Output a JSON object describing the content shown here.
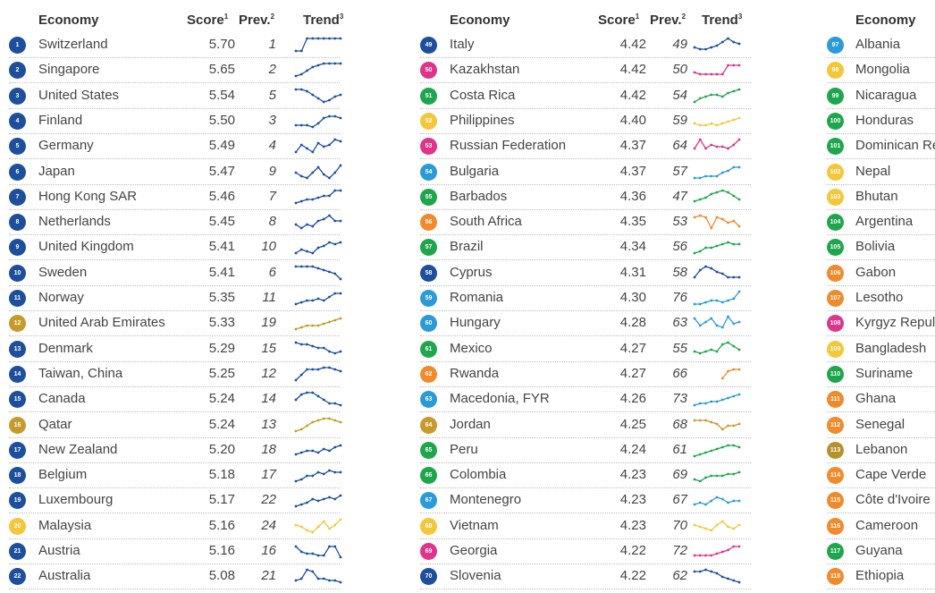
{
  "headers": {
    "economy": "Economy",
    "score": "Score",
    "score_sup": "1",
    "prev": "Prev.",
    "prev_sup": "2",
    "trend": "Trend",
    "trend_sup": "3"
  },
  "colors": {
    "navy": "#1d4f9c",
    "gold": "#c79a2b",
    "yellow": "#f4c73a",
    "sky": "#2a9ad8",
    "magenta": "#e0338a",
    "green": "#1ea64c",
    "orange": "#f08a2b",
    "olive": "#b4912a"
  },
  "columns": [
    {
      "rows": [
        {
          "rank": "1",
          "name": "Switzerland",
          "score": "5.70",
          "prev": "1",
          "color": "navy",
          "trend": [
            2,
            2,
            9,
            9,
            9,
            9,
            9,
            9,
            9
          ]
        },
        {
          "rank": "2",
          "name": "Singapore",
          "score": "5.65",
          "prev": "2",
          "color": "navy",
          "trend": [
            2,
            3,
            5,
            7,
            8,
            9,
            9,
            9,
            9
          ]
        },
        {
          "rank": "3",
          "name": "United States",
          "score": "5.54",
          "prev": "5",
          "color": "navy",
          "trend": [
            9,
            9,
            8,
            6,
            4,
            2,
            3,
            5,
            6
          ]
        },
        {
          "rank": "4",
          "name": "Finland",
          "score": "5.50",
          "prev": "3",
          "color": "navy",
          "trend": [
            3,
            3,
            3,
            2,
            4,
            7,
            8,
            8,
            7
          ]
        },
        {
          "rank": "5",
          "name": "Germany",
          "score": "5.49",
          "prev": "4",
          "color": "navy",
          "trend": [
            2,
            6,
            4,
            2,
            7,
            5,
            6,
            9,
            8
          ]
        },
        {
          "rank": "6",
          "name": "Japan",
          "score": "5.47",
          "prev": "9",
          "color": "navy",
          "trend": [
            5,
            3,
            2,
            5,
            8,
            4,
            2,
            5,
            9
          ]
        },
        {
          "rank": "7",
          "name": "Hong Kong SAR",
          "score": "5.46",
          "prev": "7",
          "color": "navy",
          "trend": [
            2,
            3,
            4,
            4,
            5,
            6,
            6,
            9,
            9
          ]
        },
        {
          "rank": "8",
          "name": "Netherlands",
          "score": "5.45",
          "prev": "8",
          "color": "navy",
          "trend": [
            4,
            2,
            4,
            3,
            6,
            7,
            9,
            6,
            6
          ]
        },
        {
          "rank": "9",
          "name": "United Kingdom",
          "score": "5.41",
          "prev": "10",
          "color": "navy",
          "trend": [
            2,
            4,
            3,
            2,
            5,
            6,
            8,
            7,
            8
          ]
        },
        {
          "rank": "10",
          "name": "Sweden",
          "score": "5.41",
          "prev": "6",
          "color": "navy",
          "trend": [
            9,
            9,
            9,
            9,
            8,
            7,
            6,
            5,
            2
          ]
        },
        {
          "rank": "11",
          "name": "Norway",
          "score": "5.35",
          "prev": "11",
          "color": "navy",
          "trend": [
            2,
            3,
            4,
            4,
            5,
            4,
            6,
            8,
            8
          ]
        },
        {
          "rank": "12",
          "name": "United Arab Emirates",
          "score": "5.33",
          "prev": "19",
          "color": "gold",
          "trend": [
            2,
            3,
            4,
            4,
            4,
            5,
            6,
            7,
            8
          ]
        },
        {
          "rank": "13",
          "name": "Denmark",
          "score": "5.29",
          "prev": "15",
          "color": "navy",
          "trend": [
            9,
            8,
            8,
            7,
            6,
            6,
            4,
            3,
            4
          ]
        },
        {
          "rank": "14",
          "name": "Taiwan, China",
          "score": "5.25",
          "prev": "12",
          "color": "navy",
          "trend": [
            2,
            5,
            8,
            8,
            8,
            9,
            9,
            8,
            7
          ]
        },
        {
          "rank": "15",
          "name": "Canada",
          "score": "5.24",
          "prev": "14",
          "color": "navy",
          "trend": [
            5,
            8,
            9,
            9,
            7,
            5,
            3,
            3,
            2
          ]
        },
        {
          "rank": "16",
          "name": "Qatar",
          "score": "5.24",
          "prev": "13",
          "color": "gold",
          "trend": [
            2,
            3,
            5,
            7,
            8,
            9,
            9,
            8,
            7
          ]
        },
        {
          "rank": "17",
          "name": "New Zealand",
          "score": "5.20",
          "prev": "18",
          "color": "navy",
          "trend": [
            3,
            4,
            5,
            5,
            4,
            6,
            5,
            7,
            8
          ]
        },
        {
          "rank": "18",
          "name": "Belgium",
          "score": "5.18",
          "prev": "17",
          "color": "navy",
          "trend": [
            2,
            3,
            5,
            5,
            7,
            6,
            8,
            7,
            7
          ]
        },
        {
          "rank": "19",
          "name": "Luxembourg",
          "score": "5.17",
          "prev": "22",
          "color": "navy",
          "trend": [
            2,
            3,
            4,
            6,
            5,
            6,
            7,
            6,
            8
          ]
        },
        {
          "rank": "20",
          "name": "Malaysia",
          "score": "5.16",
          "prev": "24",
          "color": "yellow",
          "trend": [
            6,
            5,
            3,
            2,
            5,
            8,
            4,
            6,
            9
          ]
        },
        {
          "rank": "21",
          "name": "Austria",
          "score": "5.16",
          "prev": "16",
          "color": "navy",
          "trend": [
            8,
            5,
            4,
            4,
            3,
            3,
            8,
            8,
            2
          ]
        },
        {
          "rank": "22",
          "name": "Australia",
          "score": "5.08",
          "prev": "21",
          "color": "navy",
          "trend": [
            3,
            4,
            9,
            8,
            4,
            4,
            3,
            3,
            2
          ]
        }
      ]
    },
    {
      "rows": [
        {
          "rank": "49",
          "name": "Italy",
          "score": "4.42",
          "prev": "49",
          "color": "navy",
          "trend": [
            4,
            3,
            3,
            4,
            5,
            7,
            9,
            7,
            6
          ]
        },
        {
          "rank": "50",
          "name": "Kazakhstan",
          "score": "4.42",
          "prev": "50",
          "color": "magenta",
          "trend": [
            4,
            3,
            3,
            3,
            3,
            3,
            8,
            8,
            8
          ]
        },
        {
          "rank": "51",
          "name": "Costa Rica",
          "score": "4.42",
          "prev": "54",
          "color": "green",
          "trend": [
            2,
            4,
            5,
            6,
            6,
            5,
            7,
            8,
            9
          ]
        },
        {
          "rank": "52",
          "name": "Philippines",
          "score": "4.40",
          "prev": "59",
          "color": "yellow",
          "trend": [
            4,
            3,
            3,
            4,
            3,
            4,
            5,
            6,
            7
          ]
        },
        {
          "rank": "53",
          "name": "Russian Federation",
          "score": "4.37",
          "prev": "64",
          "color": "magenta",
          "trend": [
            4,
            9,
            4,
            6,
            5,
            5,
            4,
            6,
            9
          ]
        },
        {
          "rank": "54",
          "name": "Bulgaria",
          "score": "4.37",
          "prev": "57",
          "color": "sky",
          "trend": [
            2,
            2,
            3,
            3,
            3,
            5,
            6,
            8,
            8
          ]
        },
        {
          "rank": "55",
          "name": "Barbados",
          "score": "4.36",
          "prev": "47",
          "color": "green",
          "trend": [
            3,
            4,
            5,
            7,
            8,
            9,
            8,
            6,
            4
          ]
        },
        {
          "rank": "56",
          "name": "South Africa",
          "score": "4.35",
          "prev": "53",
          "color": "orange",
          "trend": [
            8,
            9,
            8,
            2,
            8,
            7,
            5,
            6,
            3
          ]
        },
        {
          "rank": "57",
          "name": "Brazil",
          "score": "4.34",
          "prev": "56",
          "color": "green",
          "trend": [
            2,
            3,
            5,
            5,
            6,
            7,
            8,
            7,
            7
          ]
        },
        {
          "rank": "58",
          "name": "Cyprus",
          "score": "4.31",
          "prev": "58",
          "color": "navy",
          "trend": [
            3,
            7,
            9,
            8,
            6,
            5,
            3,
            3,
            3
          ]
        },
        {
          "rank": "59",
          "name": "Romania",
          "score": "4.30",
          "prev": "76",
          "color": "sky",
          "trend": [
            2,
            2,
            3,
            4,
            4,
            3,
            4,
            5,
            9
          ]
        },
        {
          "rank": "60",
          "name": "Hungary",
          "score": "4.28",
          "prev": "63",
          "color": "sky",
          "trend": [
            8,
            4,
            6,
            8,
            4,
            3,
            9,
            5,
            6
          ]
        },
        {
          "rank": "61",
          "name": "Mexico",
          "score": "4.27",
          "prev": "55",
          "color": "green",
          "trend": [
            4,
            3,
            4,
            5,
            4,
            8,
            9,
            7,
            5
          ]
        },
        {
          "rank": "62",
          "name": "Rwanda",
          "score": "4.27",
          "prev": "66",
          "color": "orange",
          "trend": [
            null,
            null,
            null,
            null,
            null,
            3,
            7,
            8,
            8
          ]
        },
        {
          "rank": "63",
          "name": "Macedonia, FYR",
          "score": "4.26",
          "prev": "73",
          "color": "sky",
          "trend": [
            2,
            3,
            3,
            4,
            4,
            5,
            6,
            7,
            8
          ]
        },
        {
          "rank": "64",
          "name": "Jordan",
          "score": "4.25",
          "prev": "68",
          "color": "gold",
          "trend": [
            8,
            8,
            8,
            7,
            6,
            3,
            5,
            5,
            6
          ]
        },
        {
          "rank": "65",
          "name": "Peru",
          "score": "4.24",
          "prev": "61",
          "color": "green",
          "trend": [
            2,
            3,
            4,
            5,
            6,
            7,
            8,
            8,
            7
          ]
        },
        {
          "rank": "66",
          "name": "Colombia",
          "score": "4.23",
          "prev": "69",
          "color": "green",
          "trend": [
            3,
            2,
            4,
            5,
            5,
            5,
            6,
            6,
            7
          ]
        },
        {
          "rank": "67",
          "name": "Montenegro",
          "score": "4.23",
          "prev": "67",
          "color": "sky",
          "trend": [
            3,
            4,
            3,
            5,
            7,
            6,
            4,
            5,
            5
          ]
        },
        {
          "rank": "68",
          "name": "Vietnam",
          "score": "4.23",
          "prev": "70",
          "color": "yellow",
          "trend": [
            6,
            5,
            4,
            3,
            6,
            8,
            5,
            4,
            6
          ]
        },
        {
          "rank": "69",
          "name": "Georgia",
          "score": "4.22",
          "prev": "72",
          "color": "magenta",
          "trend": [
            3,
            3,
            3,
            3,
            4,
            5,
            6,
            8,
            8
          ]
        },
        {
          "rank": "70",
          "name": "Slovenia",
          "score": "4.22",
          "prev": "62",
          "color": "navy",
          "trend": [
            8,
            8,
            9,
            8,
            7,
            5,
            4,
            3,
            2
          ]
        }
      ]
    },
    {
      "rows": [
        {
          "rank": "97",
          "name": "Albania",
          "color": "sky"
        },
        {
          "rank": "98",
          "name": "Mongolia",
          "color": "yellow"
        },
        {
          "rank": "99",
          "name": "Nicaragua",
          "color": "green"
        },
        {
          "rank": "100",
          "name": "Honduras",
          "color": "green"
        },
        {
          "rank": "101",
          "name": "Dominican Re",
          "color": "green"
        },
        {
          "rank": "102",
          "name": "Nepal",
          "color": "yellow"
        },
        {
          "rank": "103",
          "name": "Bhutan",
          "color": "yellow"
        },
        {
          "rank": "104",
          "name": "Argentina",
          "color": "green"
        },
        {
          "rank": "105",
          "name": "Bolivia",
          "color": "green"
        },
        {
          "rank": "106",
          "name": "Gabon",
          "color": "orange"
        },
        {
          "rank": "107",
          "name": "Lesotho",
          "color": "orange"
        },
        {
          "rank": "108",
          "name": "Kyrgyz Repul",
          "color": "magenta"
        },
        {
          "rank": "109",
          "name": "Bangladesh",
          "color": "yellow"
        },
        {
          "rank": "110",
          "name": "Suriname",
          "color": "green"
        },
        {
          "rank": "111",
          "name": "Ghana",
          "color": "orange"
        },
        {
          "rank": "112",
          "name": "Senegal",
          "color": "orange"
        },
        {
          "rank": "113",
          "name": "Lebanon",
          "color": "olive"
        },
        {
          "rank": "114",
          "name": "Cape Verde",
          "color": "orange"
        },
        {
          "rank": "115",
          "name": "Côte d'Ivoire",
          "color": "orange"
        },
        {
          "rank": "116",
          "name": "Cameroon",
          "color": "orange"
        },
        {
          "rank": "117",
          "name": "Guyana",
          "color": "green"
        },
        {
          "rank": "118",
          "name": "Ethiopia",
          "color": "orange"
        }
      ]
    }
  ]
}
